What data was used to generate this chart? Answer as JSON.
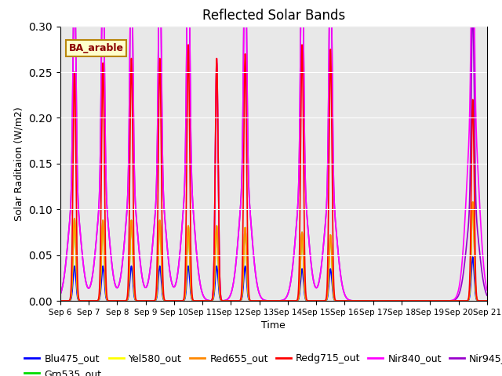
{
  "title": "Reflected Solar Bands",
  "xlabel": "Time",
  "ylabel": "Solar Raditaion (W/m2)",
  "annotation": "BA_arable",
  "ylim": [
    0,
    0.3
  ],
  "yticks": [
    0.0,
    0.05,
    0.1,
    0.15,
    0.2,
    0.25,
    0.3
  ],
  "xtick_labels": [
    "Sep 6",
    "Sep 7",
    "Sep 8",
    "Sep 9",
    "Sep 10",
    "Sep 11",
    "Sep 12",
    "Sep 13",
    "Sep 14",
    "Sep 15",
    "Sep 16",
    "Sep 17",
    "Sep 18",
    "Sep 19",
    "Sep 20",
    "Sep 21"
  ],
  "series": {
    "Blu475_out": {
      "color": "#0000ff",
      "lw": 1.2
    },
    "Grn535_out": {
      "color": "#00dd00",
      "lw": 1.2
    },
    "Yel580_out": {
      "color": "#ffff00",
      "lw": 1.2
    },
    "Red655_out": {
      "color": "#ff8800",
      "lw": 1.2
    },
    "Redg715_out": {
      "color": "#ff0000",
      "lw": 1.2
    },
    "Nir840_out": {
      "color": "#ff00ff",
      "lw": 1.2
    },
    "Nir945_out": {
      "color": "#9900cc",
      "lw": 1.2
    }
  },
  "bg_color": "#e8e8e8",
  "fig_bg": "#ffffff",
  "title_fontsize": 12,
  "legend_fontsize": 9,
  "day_peaks_redg715": [
    0.25,
    0.26,
    0.265,
    0.265,
    0.28,
    0.265,
    0.27,
    0.0,
    0.28,
    0.275,
    0.0,
    0.0,
    0.0,
    0.0,
    0.22
  ],
  "day_peaks_nir840": [
    0.25,
    0.26,
    0.265,
    0.265,
    0.28,
    0.265,
    0.27,
    0.0,
    0.28,
    0.275,
    0.0,
    0.0,
    0.0,
    0.0,
    0.22
  ],
  "day_peaks_nir945": [
    0.245,
    0.255,
    0.26,
    0.26,
    0.275,
    0.26,
    0.265,
    0.0,
    0.275,
    0.27,
    0.0,
    0.0,
    0.0,
    0.0,
    0.215
  ],
  "day_peaks_red655": [
    0.09,
    0.088,
    0.088,
    0.088,
    0.082,
    0.082,
    0.08,
    0.0,
    0.075,
    0.072,
    0.0,
    0.0,
    0.0,
    0.0,
    0.108
  ],
  "day_peaks_yel580": [
    0.09,
    0.088,
    0.088,
    0.088,
    0.082,
    0.082,
    0.08,
    0.0,
    0.075,
    0.072,
    0.0,
    0.0,
    0.0,
    0.0,
    0.108
  ],
  "day_peaks_grn535": [
    0.09,
    0.088,
    0.088,
    0.088,
    0.082,
    0.082,
    0.08,
    0.0,
    0.075,
    0.072,
    0.0,
    0.0,
    0.0,
    0.0,
    0.108
  ],
  "day_peaks_blu475": [
    0.038,
    0.038,
    0.038,
    0.038,
    0.038,
    0.038,
    0.038,
    0.0,
    0.035,
    0.035,
    0.0,
    0.0,
    0.0,
    0.0,
    0.048
  ],
  "narrow_hw": 1.2,
  "wide_hw": 5.0,
  "day9_nir945_partial": 0.19
}
